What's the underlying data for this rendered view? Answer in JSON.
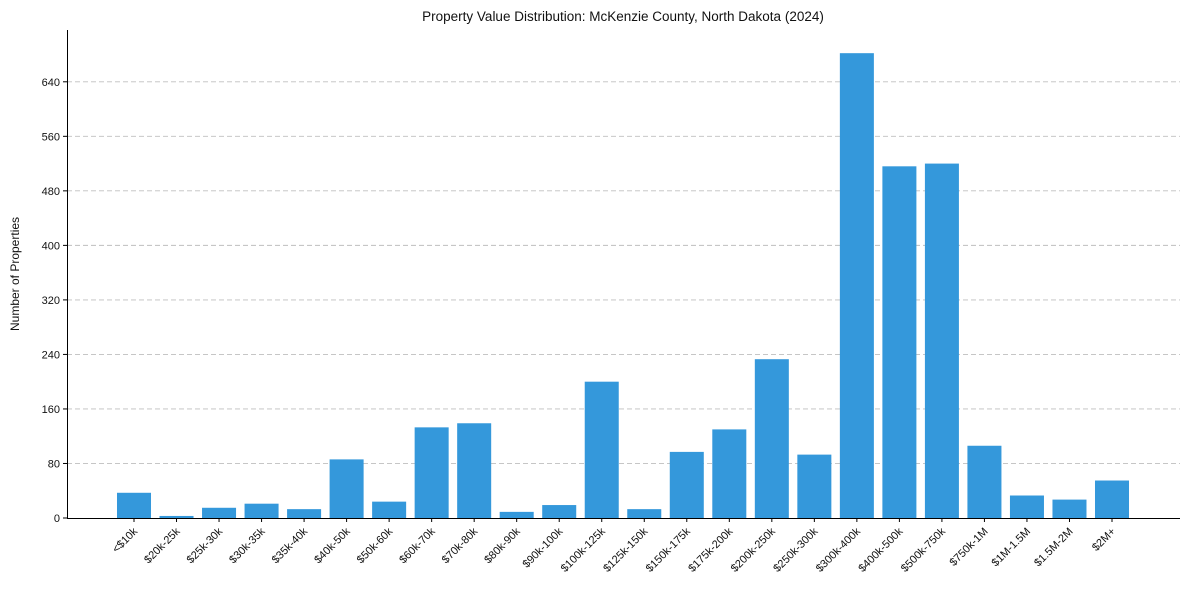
{
  "chart_data": {
    "type": "bar",
    "title": "Property Value Distribution: McKenzie County, North Dakota (2024)",
    "xlabel": "",
    "ylabel": "Number of Properties",
    "ylim": [
      0,
      716
    ],
    "yticks": [
      0,
      80,
      160,
      240,
      320,
      400,
      480,
      560,
      640
    ],
    "grid": "y-dashed",
    "bar_color": "#3498db",
    "categories": [
      "<$10k",
      "$20k-25k",
      "$25k-30k",
      "$30k-35k",
      "$35k-40k",
      "$40k-50k",
      "$50k-60k",
      "$60k-70k",
      "$70k-80k",
      "$80k-90k",
      "$90k-100k",
      "$100k-125k",
      "$125k-150k",
      "$150k-175k",
      "$175k-200k",
      "$200k-250k",
      "$250k-300k",
      "$300k-400k",
      "$400k-500k",
      "$500k-750k",
      "$750k-1M",
      "$1M-1.5M",
      "$1.5M-2M",
      "$2M+"
    ],
    "values": [
      37,
      3,
      15,
      21,
      13,
      86,
      24,
      133,
      139,
      9,
      19,
      200,
      13,
      97,
      130,
      233,
      93,
      682,
      516,
      520,
      106,
      33,
      27,
      55
    ]
  }
}
